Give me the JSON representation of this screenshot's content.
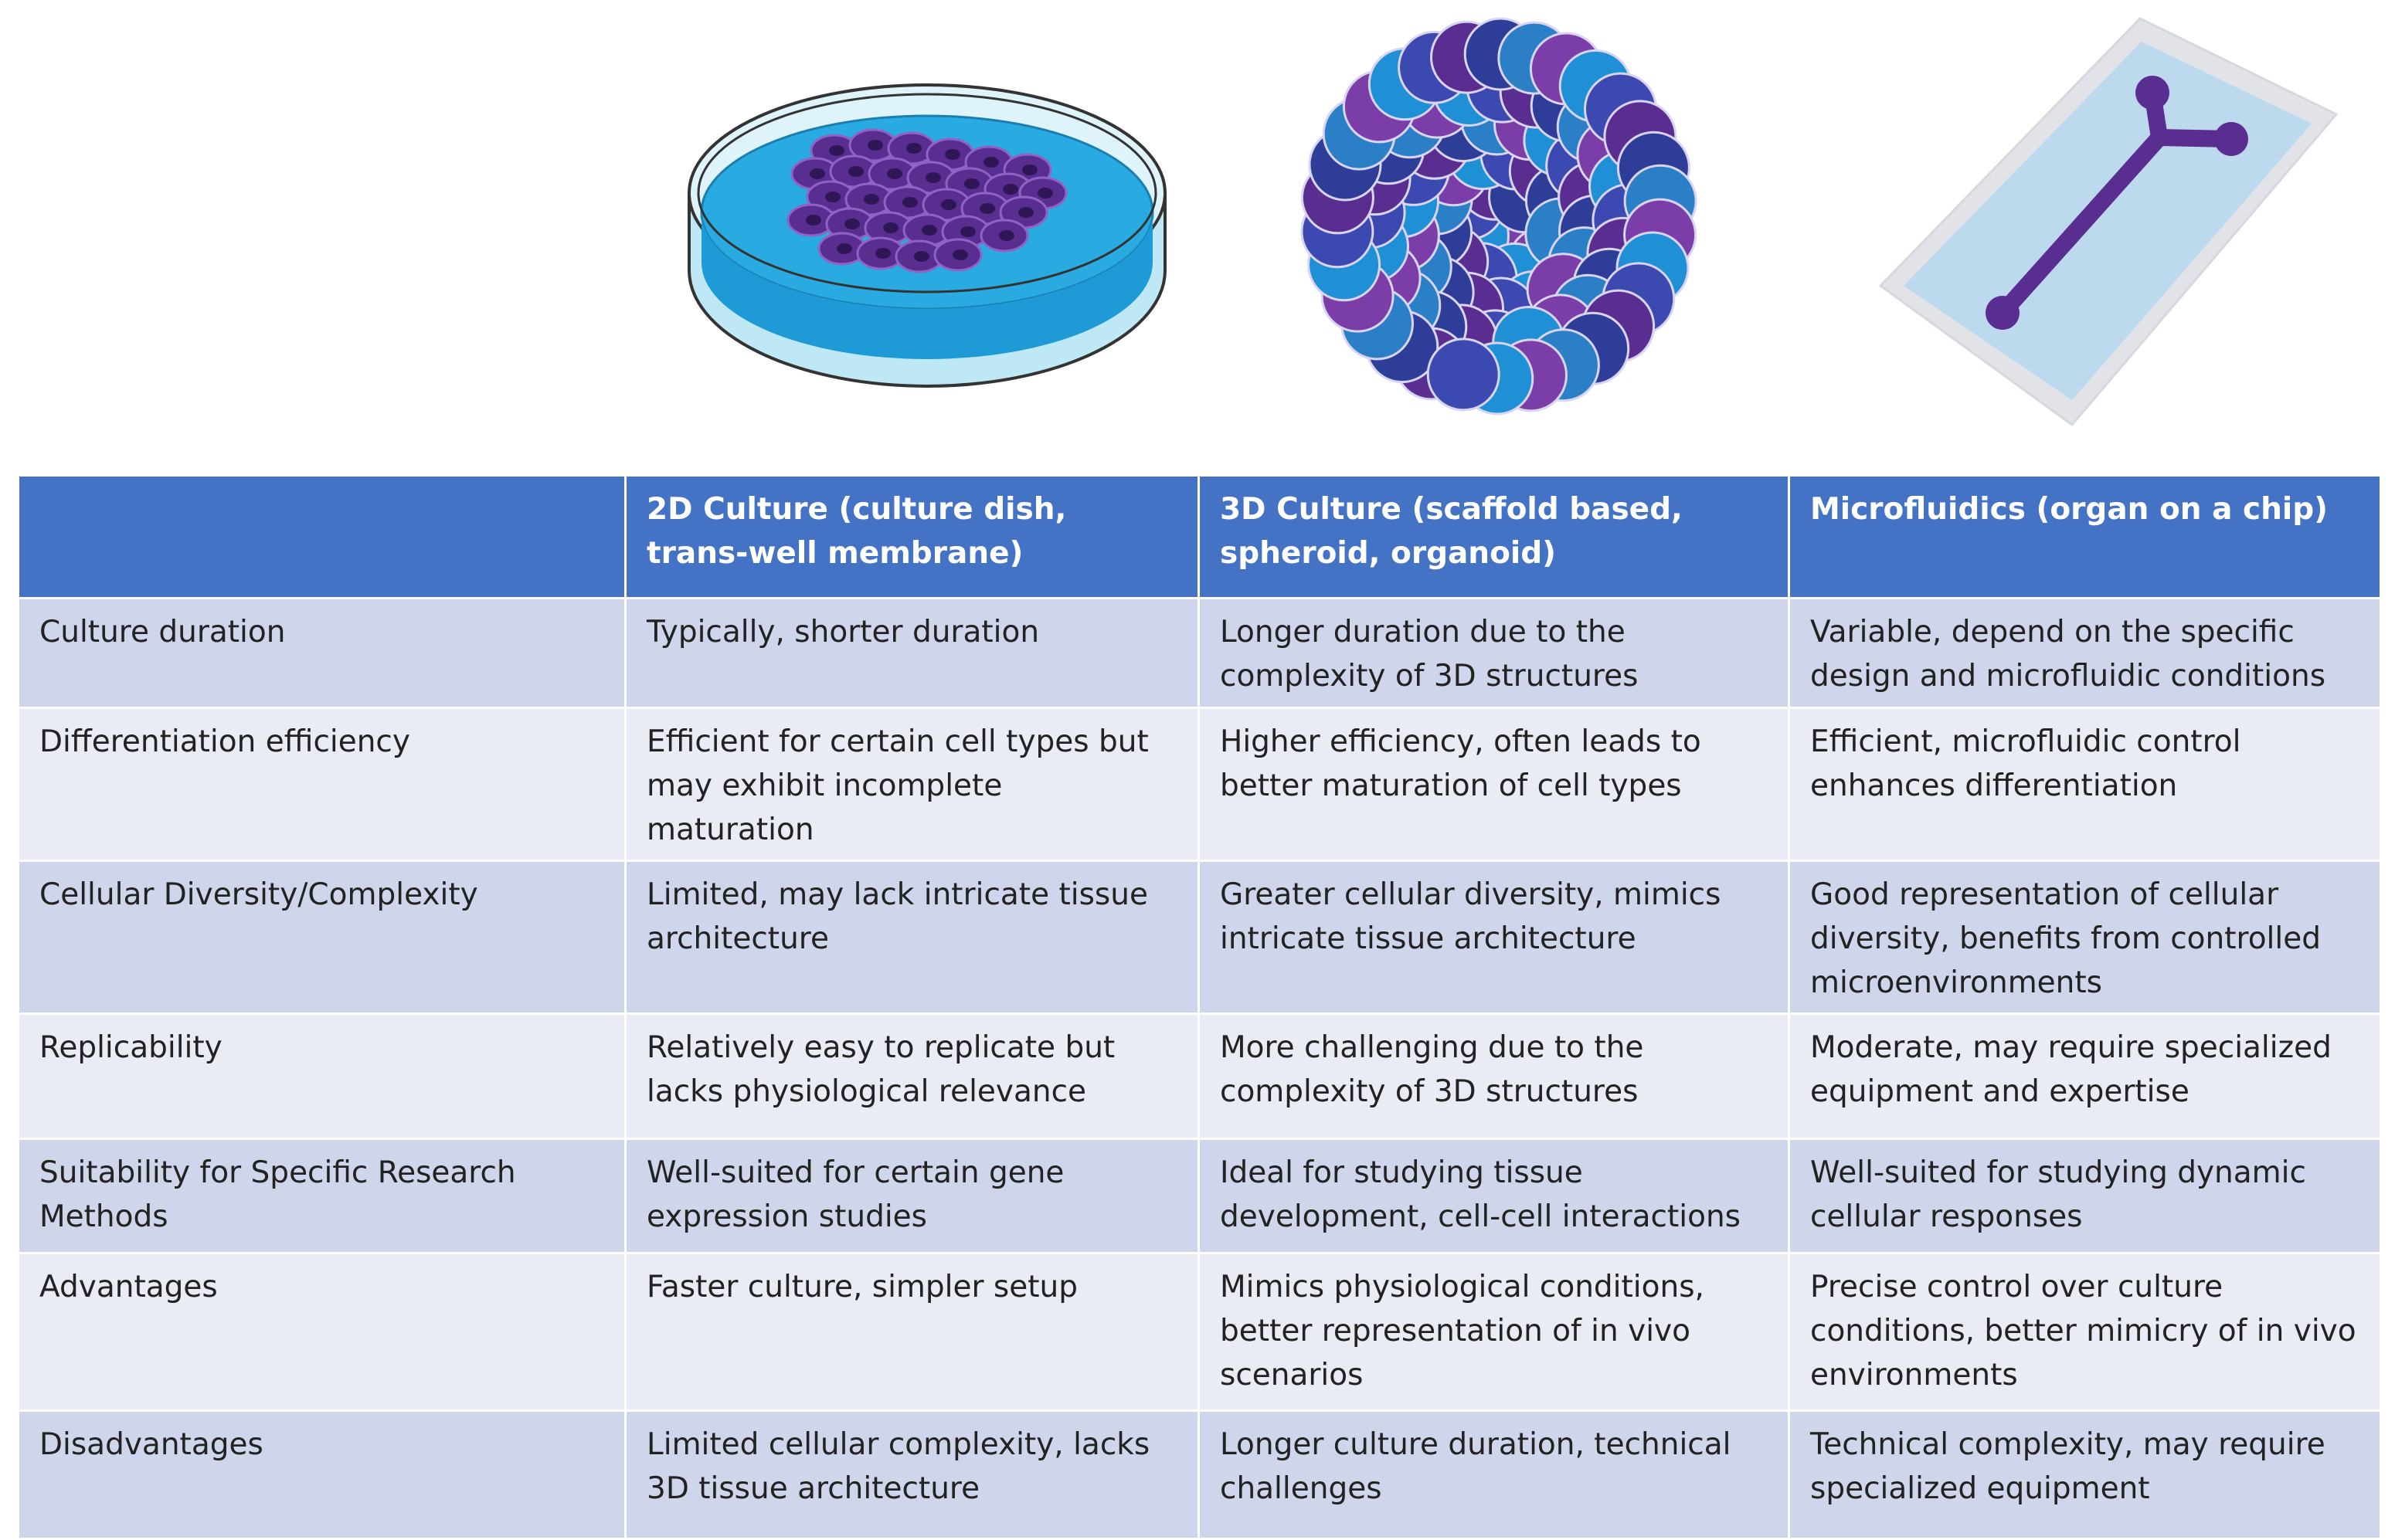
{
  "illustrations": [
    {
      "name": "culture-dish-icon"
    },
    {
      "name": "spheroid-icon"
    },
    {
      "name": "organ-chip-icon"
    }
  ],
  "colors": {
    "header_bg": "#4472c4",
    "row_dark": "#cfd5ea",
    "row_light": "#e9ebf5",
    "cell_purple": "#5a2d91",
    "medium_blue": "#29abe2"
  },
  "table": {
    "headers": [
      "",
      "2D Culture (culture dish, trans-well membrane)",
      "3D Culture (scaffold based, spheroid, organoid)",
      "Microfluidics (organ on a chip)"
    ],
    "rows": [
      {
        "label": "Culture duration",
        "cells": [
          "Typically, shorter duration",
          "Longer duration due to the complexity of 3D structures",
          "Variable, depend on the specific design and microfluidic conditions"
        ]
      },
      {
        "label": "Differentiation efficiency",
        "cells": [
          "Efficient for certain cell types but may exhibit incomplete maturation",
          "Higher efficiency, often leads to better maturation of cell types",
          "Efficient, microfluidic control enhances differentiation"
        ]
      },
      {
        "label": "Cellular Diversity/Complexity",
        "cells": [
          "Limited, may lack intricate tissue architecture",
          "Greater cellular diversity, mimics intricate tissue architecture",
          "Good representation of cellular diversity, benefits from controlled microenvironments"
        ]
      },
      {
        "label": "Replicability",
        "cells": [
          "Relatively easy to replicate but lacks physiological relevance",
          "More challenging due to the complexity of 3D structures",
          "Moderate, may require specialized equipment and expertise"
        ]
      },
      {
        "label": "Suitability for Specific Research Methods",
        "cells": [
          "Well-suited for certain gene expression studies",
          "Ideal for studying tissue development,  cell-cell interactions",
          "Well-suited for studying dynamic cellular responses"
        ]
      },
      {
        "label": "Advantages",
        "cells": [
          "Faster culture,  simpler setup",
          "Mimics physiological conditions, better representation of in vivo scenarios",
          "Precise control over culture conditions, better mimicry of in vivo environments"
        ]
      },
      {
        "label": "Disadvantages",
        "cells": [
          "Limited cellular complexity, lacks 3D tissue architecture",
          "Longer culture duration, technical challenges",
          "Technical complexity, may require specialized equipment"
        ]
      }
    ]
  }
}
